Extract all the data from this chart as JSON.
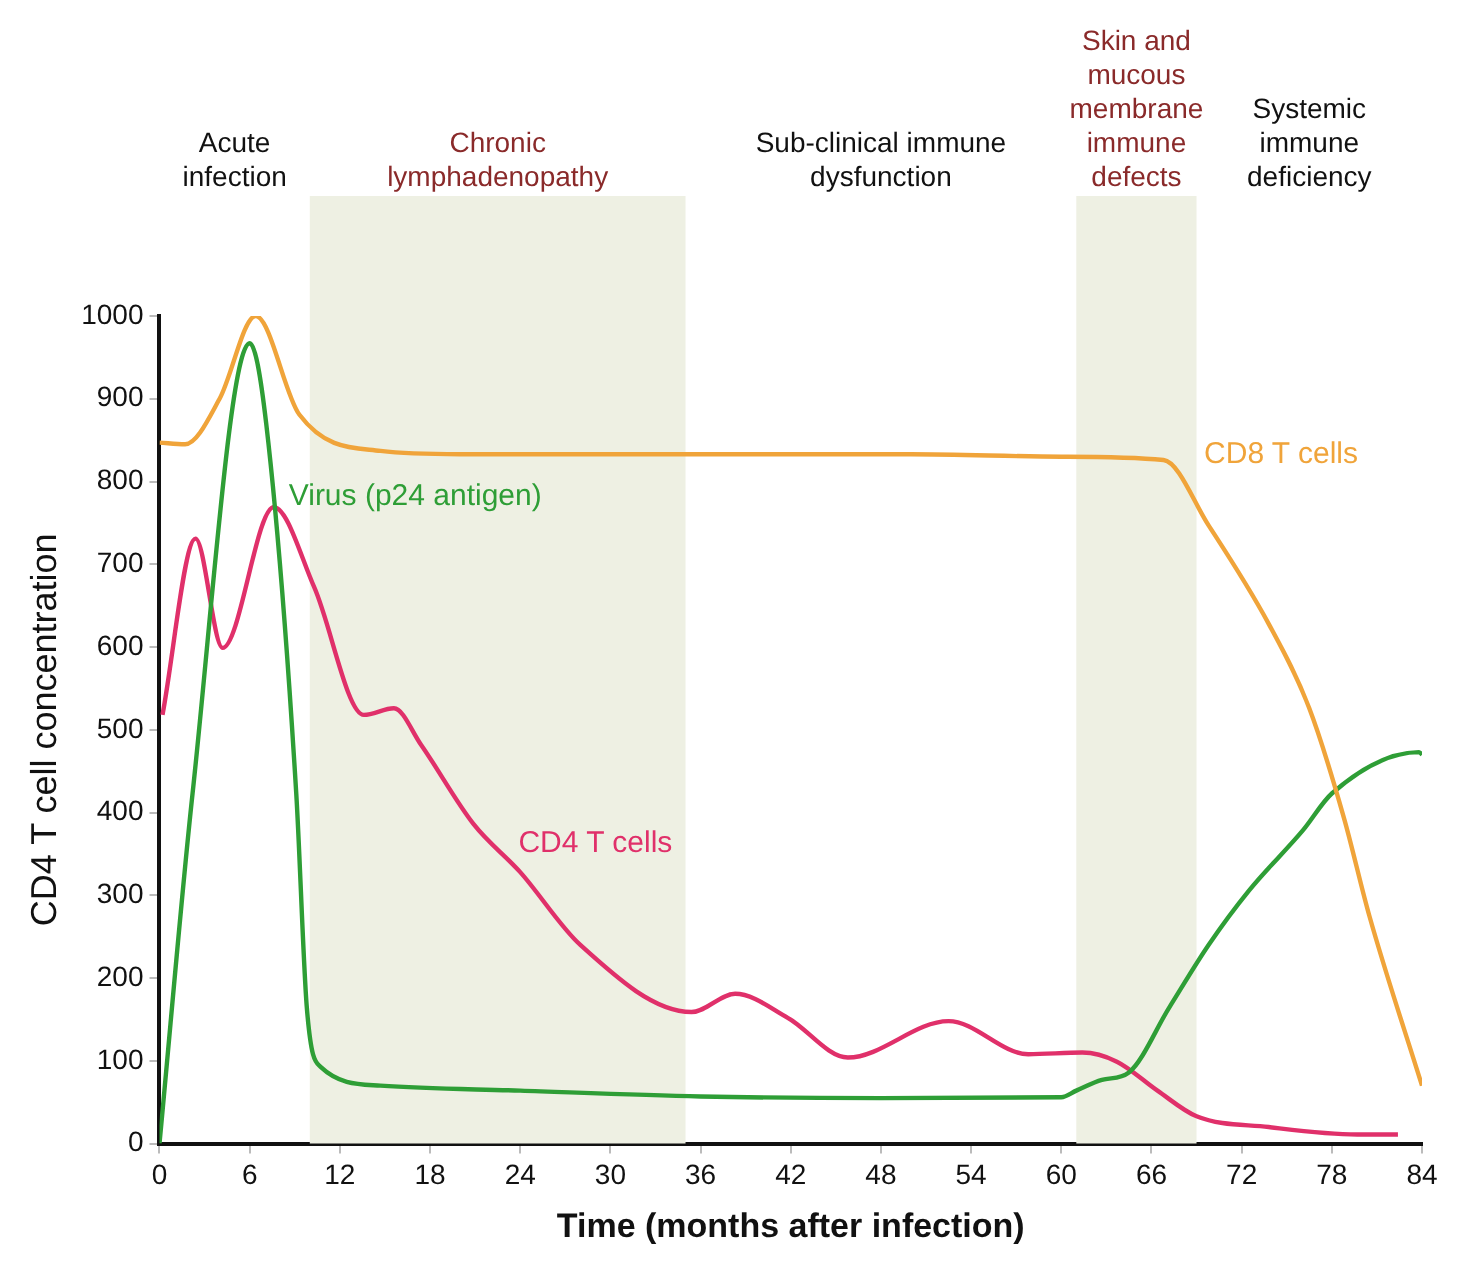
{
  "chart_data": {
    "type": "line",
    "xlabel": "Time (months after infection)",
    "ylabel": "CD4 T cell concentration",
    "xlim": [
      0,
      84
    ],
    "xticks": [
      0,
      6,
      12,
      18,
      24,
      30,
      36,
      42,
      48,
      54,
      60,
      66,
      72,
      78,
      84
    ],
    "ylim": [
      0,
      1000
    ],
    "yticks": [
      0,
      100,
      200,
      300,
      400,
      500,
      600,
      700,
      800,
      900,
      1000
    ],
    "grid": false,
    "legend": false,
    "marker": "none",
    "line_style": "solid",
    "annotations": [
      "Acute infection",
      "Sub-clinical immune dysfunction",
      "Systemic immune deficiency"
    ],
    "bands": [
      {
        "axis": "x",
        "from": 10,
        "to": 35,
        "label": "Chronic lymphadenopathy",
        "color": "#eef0e3"
      },
      {
        "axis": "x",
        "from": 61,
        "to": 69,
        "label": "Skin and mucous membrane immune defects",
        "color": "#eef0e3"
      }
    ],
    "series": [
      {
        "name": "CD8 T cells",
        "color": "#f0a43a",
        "x": [
          0,
          1.7,
          4,
          6.4,
          9.3,
          14.7,
          20,
          30,
          40,
          50,
          60,
          66.8,
          69.8,
          73.8,
          76.5,
          78.8,
          80.5,
          84
        ],
        "values": [
          847,
          845,
          900,
          1000,
          881,
          837,
          833,
          833,
          833,
          833,
          830,
          826,
          747,
          628,
          526,
          394,
          275,
          70
        ]
      },
      {
        "name": "Virus (p24 antigen)",
        "color": "#2e9e36",
        "x": [
          0,
          2.2,
          6,
          7.1,
          9.1,
          9.8,
          10.7,
          14.7,
          24,
          36,
          48,
          60,
          61,
          62.7,
          64.5,
          67.2,
          69.8,
          72.5,
          76.1,
          78,
          83.8,
          84
        ],
        "values": [
          0,
          423,
          967,
          870,
          423,
          165,
          93,
          70,
          64,
          57,
          55,
          56,
          64,
          77,
          86,
          165,
          240,
          306,
          379,
          423,
          473,
          470
        ]
      },
      {
        "name": "CD4 T cells",
        "color": "#e0306a",
        "x": [
          0.2,
          2.4,
          4.2,
          7.6,
          10.3,
          13.6,
          15.6,
          17.4,
          20.9,
          24,
          28,
          35.4,
          38.3,
          41.8,
          45.8,
          52.5,
          57.8,
          61.4,
          63.7,
          66.4,
          69,
          73.8,
          79.7,
          82.4
        ],
        "values": [
          518,
          731,
          599,
          769,
          672,
          518,
          526,
          482,
          386,
          328,
          240,
          159,
          181,
          152,
          104,
          148,
          108,
          110,
          99,
          64,
          33,
          20,
          11,
          11
        ]
      }
    ]
  }
}
